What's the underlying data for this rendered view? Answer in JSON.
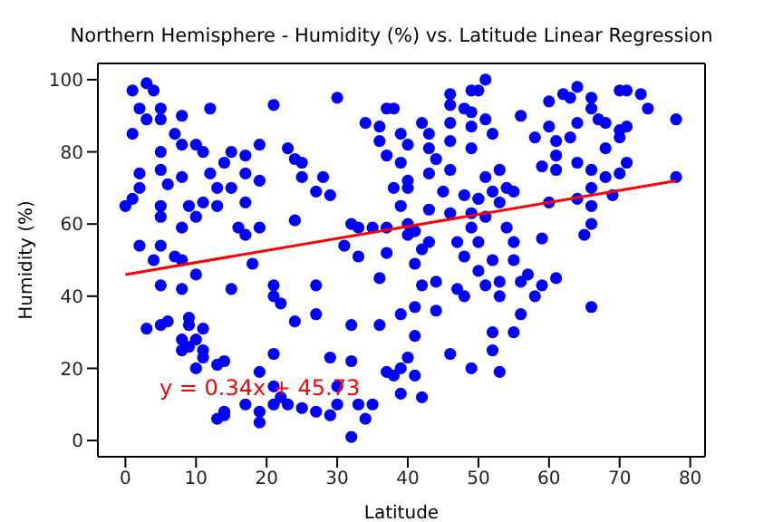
{
  "chart_data": {
    "type": "scatter",
    "title": "Northern Hemisphere - Humidity (%) vs. Latitude Linear Regression",
    "xlabel": "Latitude",
    "ylabel": "Humidity (%)",
    "annotations": [
      "y = 0.34x + 45.73"
    ],
    "xlim": [
      -3.9,
      82.1
    ],
    "xticks": [
      0,
      10,
      20,
      30,
      40,
      50,
      60,
      70,
      80
    ],
    "ylim": [
      -4.5,
      104.5
    ],
    "yticks": [
      0,
      20,
      40,
      60,
      80,
      100
    ],
    "series": [
      {
        "color": "#0000ff",
        "marker": "circle",
        "x": [
          1,
          3,
          4,
          2,
          1,
          3,
          5,
          5,
          8,
          12,
          21,
          7,
          8,
          10,
          11,
          15,
          17,
          19,
          23,
          5,
          5,
          2,
          8,
          6,
          12,
          14,
          17,
          19,
          13,
          15,
          2,
          1,
          0,
          5,
          5,
          9,
          11,
          10,
          13,
          17,
          8,
          16,
          17,
          19,
          2,
          5,
          4,
          7,
          8,
          10,
          18,
          5,
          8,
          15,
          21,
          21,
          22,
          3,
          5,
          6,
          9,
          9,
          11,
          8,
          9,
          10,
          11,
          8,
          11,
          10,
          13,
          14,
          21,
          19,
          14,
          14,
          13,
          17,
          19,
          19,
          21,
          22,
          21,
          30,
          37,
          38,
          34,
          36,
          42,
          39,
          36,
          37,
          40,
          43,
          43,
          44,
          46,
          46,
          49,
          46,
          48,
          49,
          46,
          49,
          46,
          49,
          25,
          28,
          25,
          27,
          29,
          39,
          40,
          38,
          40,
          43,
          45,
          48,
          50,
          39,
          43,
          46,
          49,
          32,
          33,
          35,
          37,
          40,
          41,
          43,
          47,
          49,
          40,
          31,
          33,
          37,
          42,
          41,
          44,
          42,
          48,
          36,
          47,
          48,
          27,
          41,
          39,
          24,
          27,
          32,
          36,
          44,
          41,
          46,
          49,
          29,
          32,
          40,
          39,
          37,
          38,
          41,
          42,
          39,
          35,
          34,
          32,
          30,
          30,
          27,
          25,
          23,
          29,
          33,
          24,
          24,
          51,
          50,
          51,
          52,
          56,
          60,
          62,
          64,
          63,
          66,
          70,
          71,
          73,
          74,
          78,
          66,
          64,
          67,
          68,
          60,
          58,
          61,
          63,
          70,
          71,
          70,
          68,
          61,
          64,
          66,
          61,
          59,
          71,
          70,
          68,
          78,
          51,
          53,
          52,
          54,
          55,
          50,
          53,
          60,
          64,
          66,
          69,
          66,
          51,
          66,
          65,
          59,
          54,
          55,
          50,
          52,
          55,
          50,
          57,
          56,
          61,
          59,
          51,
          53,
          53,
          58,
          66,
          56,
          55,
          52,
          52,
          53
        ],
        "values": [
          97,
          99,
          97,
          92,
          85,
          89,
          92,
          89,
          90,
          92,
          93,
          85,
          82,
          82,
          80,
          80,
          79,
          82,
          81,
          80,
          75,
          74,
          73,
          71,
          74,
          77,
          74,
          72,
          70,
          70,
          70,
          67,
          65,
          65,
          62,
          65,
          66,
          62,
          65,
          66,
          59,
          59,
          57,
          59,
          54,
          54,
          50,
          51,
          50,
          46,
          49,
          43,
          42,
          42,
          43,
          40,
          38,
          31,
          32,
          33,
          34,
          32,
          31,
          28,
          26,
          28,
          25,
          25,
          23,
          20,
          21,
          22,
          24,
          19,
          8,
          7,
          6,
          10,
          8,
          5,
          10,
          12,
          15,
          95,
          92,
          92,
          88,
          87,
          88,
          85,
          83,
          79,
          82,
          85,
          81,
          78,
          75,
          96,
          97,
          93,
          92,
          91,
          88,
          87,
          83,
          81,
          77,
          73,
          73,
          69,
          68,
          77,
          72,
          70,
          70,
          74,
          69,
          68,
          67,
          65,
          64,
          63,
          63,
          60,
          59,
          59,
          59,
          57,
          58,
          55,
          55,
          59,
          60,
          54,
          51,
          52,
          53,
          49,
          44,
          43,
          51,
          45,
          42,
          40,
          43,
          37,
          35,
          33,
          35,
          32,
          32,
          36,
          29,
          24,
          20,
          23,
          22,
          23,
          20,
          19,
          18,
          18,
          12,
          13,
          10,
          6,
          1,
          10,
          15,
          8,
          9,
          10,
          7,
          10,
          78,
          61,
          100,
          97,
          89,
          85,
          90,
          94,
          96,
          98,
          95,
          95,
          97,
          97,
          96,
          92,
          89,
          92,
          88,
          89,
          88,
          87,
          84,
          83,
          84,
          86,
          87,
          84,
          81,
          79,
          77,
          75,
          75,
          76,
          77,
          74,
          73,
          73,
          73,
          75,
          69,
          70,
          69,
          67,
          66,
          66,
          67,
          70,
          68,
          65,
          62,
          60,
          57,
          56,
          59,
          55,
          55,
          50,
          50,
          47,
          46,
          44,
          45,
          43,
          43,
          44,
          40,
          40,
          37,
          35,
          30,
          30,
          25,
          19
        ]
      },
      {
        "type": "line",
        "color": "#ff0000",
        "marker": "none",
        "line_style": "solid",
        "x": [
          0,
          78
        ],
        "values": [
          46,
          72
        ]
      }
    ]
  }
}
